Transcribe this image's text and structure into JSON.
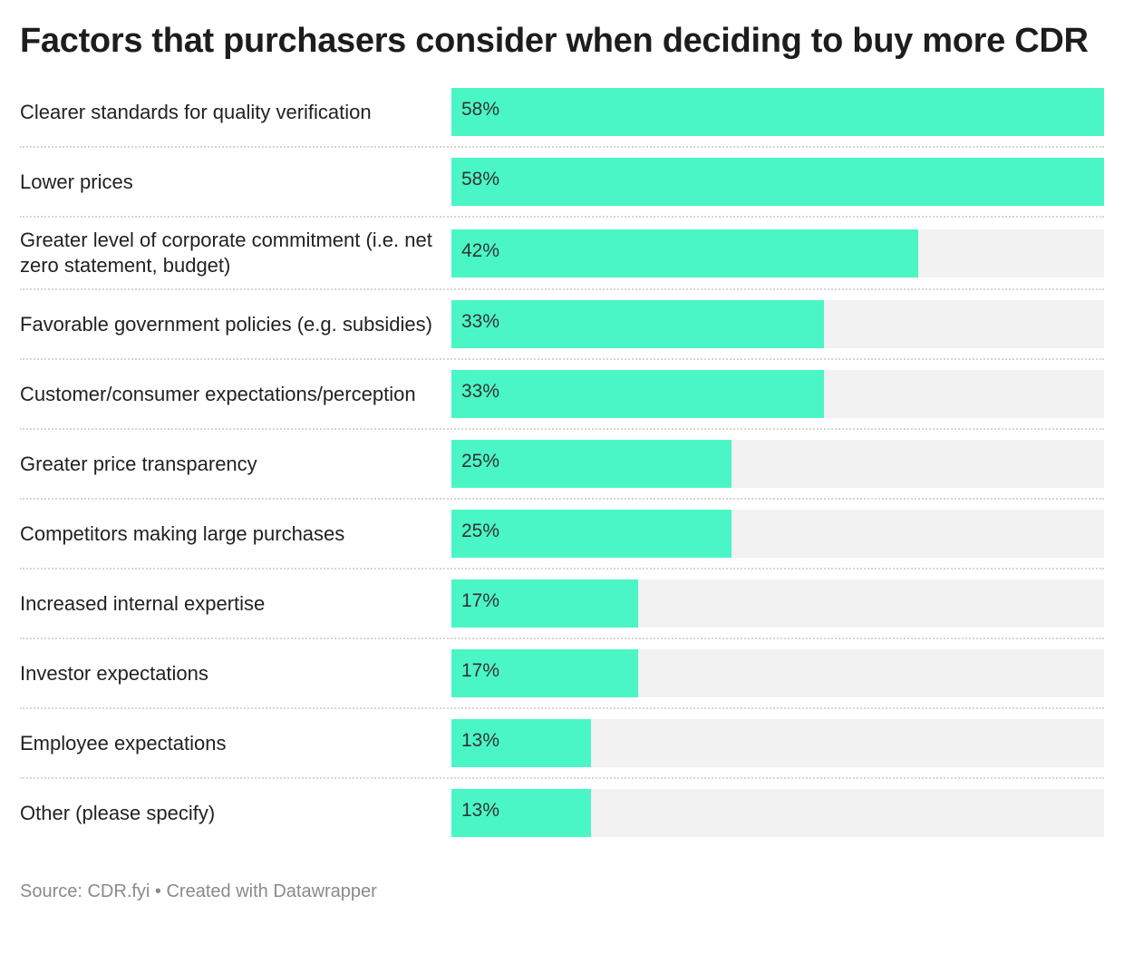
{
  "title": "Factors that purchasers consider when deciding to buy more CDR",
  "footer": "Source: CDR.fyi • Created with Datawrapper",
  "colors": {
    "bar": "#4bf6c6",
    "track": "#f2f2f2"
  },
  "chart_data": {
    "type": "bar",
    "orientation": "horizontal",
    "title": "Factors that purchasers consider when deciding to buy more CDR",
    "xlim": [
      0,
      58.3
    ],
    "categories": [
      "Clearer standards for quality verification",
      "Lower prices",
      "Greater level of corporate commitment (i.e. net zero statement, budget)",
      "Favorable government policies (e.g. subsidies)",
      "Customer/consumer expectations/perception",
      "Greater price transparency",
      "Competitors making large purchases",
      "Increased internal expertise",
      "Investor expectations",
      "Employee expectations",
      "Other (please specify)"
    ],
    "values": [
      58.3,
      58.3,
      41.7,
      33.3,
      33.3,
      25,
      25,
      16.7,
      16.7,
      12.5,
      12.5
    ],
    "value_labels": [
      "58%",
      "58%",
      "42%",
      "33%",
      "33%",
      "25%",
      "25%",
      "17%",
      "17%",
      "13%",
      "13%"
    ],
    "unit": "%"
  }
}
